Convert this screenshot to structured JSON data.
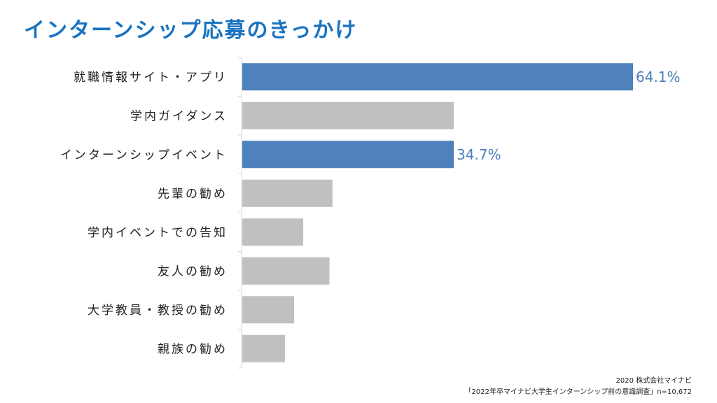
{
  "title": "インターンシップ応募のきっかけ",
  "colors": {
    "title": "#1a73c0",
    "highlight_bar": "#4f81bd",
    "default_bar": "#c0c0c0",
    "value_label": "#4a7ebb",
    "axis": "#d9d9d9"
  },
  "chart_data": {
    "type": "bar",
    "orientation": "horizontal",
    "categories": [
      "就職情報サイト・アプリ",
      "学内ガイダンス",
      "インターンシップイベント",
      "先輩の勧め",
      "学内イベントでの告知",
      "友人の勧め",
      "大学教員・教授の勧め",
      "親族の勧め"
    ],
    "values": [
      64.1,
      34.7,
      34.7,
      14.8,
      10.0,
      14.3,
      8.5,
      7.0
    ],
    "highlighted": [
      true,
      false,
      true,
      false,
      false,
      false,
      false,
      false
    ],
    "data_labels": [
      "64.1%",
      "",
      "34.7%",
      "",
      "",
      "",
      "",
      ""
    ],
    "xlim": [
      0,
      64.1
    ],
    "grid": false,
    "legend": "none"
  },
  "source": {
    "line1": "2020 株式会社マイナビ",
    "line2": "「2022年卒マイナビ大学生インターンシップ前の意識調査」n=10,672"
  }
}
